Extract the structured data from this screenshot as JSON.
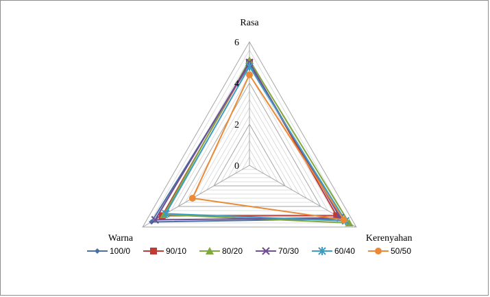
{
  "chart_data": {
    "type": "radar",
    "axes": [
      "Rasa",
      "Kerenyahan",
      "Warna"
    ],
    "rmin": 0,
    "rmax": 6,
    "ticks": [
      "0",
      "2",
      "4",
      "6"
    ],
    "grid_step": 0.4,
    "legend_position": "bottom",
    "series": [
      {
        "name": "100/0",
        "color": "#4a6fa5",
        "marker": "diamond",
        "values": [
          4.9,
          5.2,
          5.5
        ]
      },
      {
        "name": "90/10",
        "color": "#be3b36",
        "marker": "square",
        "values": [
          5.0,
          4.9,
          4.9
        ]
      },
      {
        "name": "80/20",
        "color": "#80a83c",
        "marker": "triangle",
        "values": [
          5.1,
          5.6,
          4.8
        ]
      },
      {
        "name": "70/30",
        "color": "#6e4f97",
        "marker": "x",
        "values": [
          5.0,
          5.1,
          5.3
        ]
      },
      {
        "name": "60/40",
        "color": "#3d9cc0",
        "marker": "star",
        "values": [
          4.8,
          5.4,
          4.7
        ]
      },
      {
        "name": "50/50",
        "color": "#ea8a36",
        "marker": "circle",
        "values": [
          4.4,
          5.3,
          3.2
        ]
      }
    ]
  }
}
